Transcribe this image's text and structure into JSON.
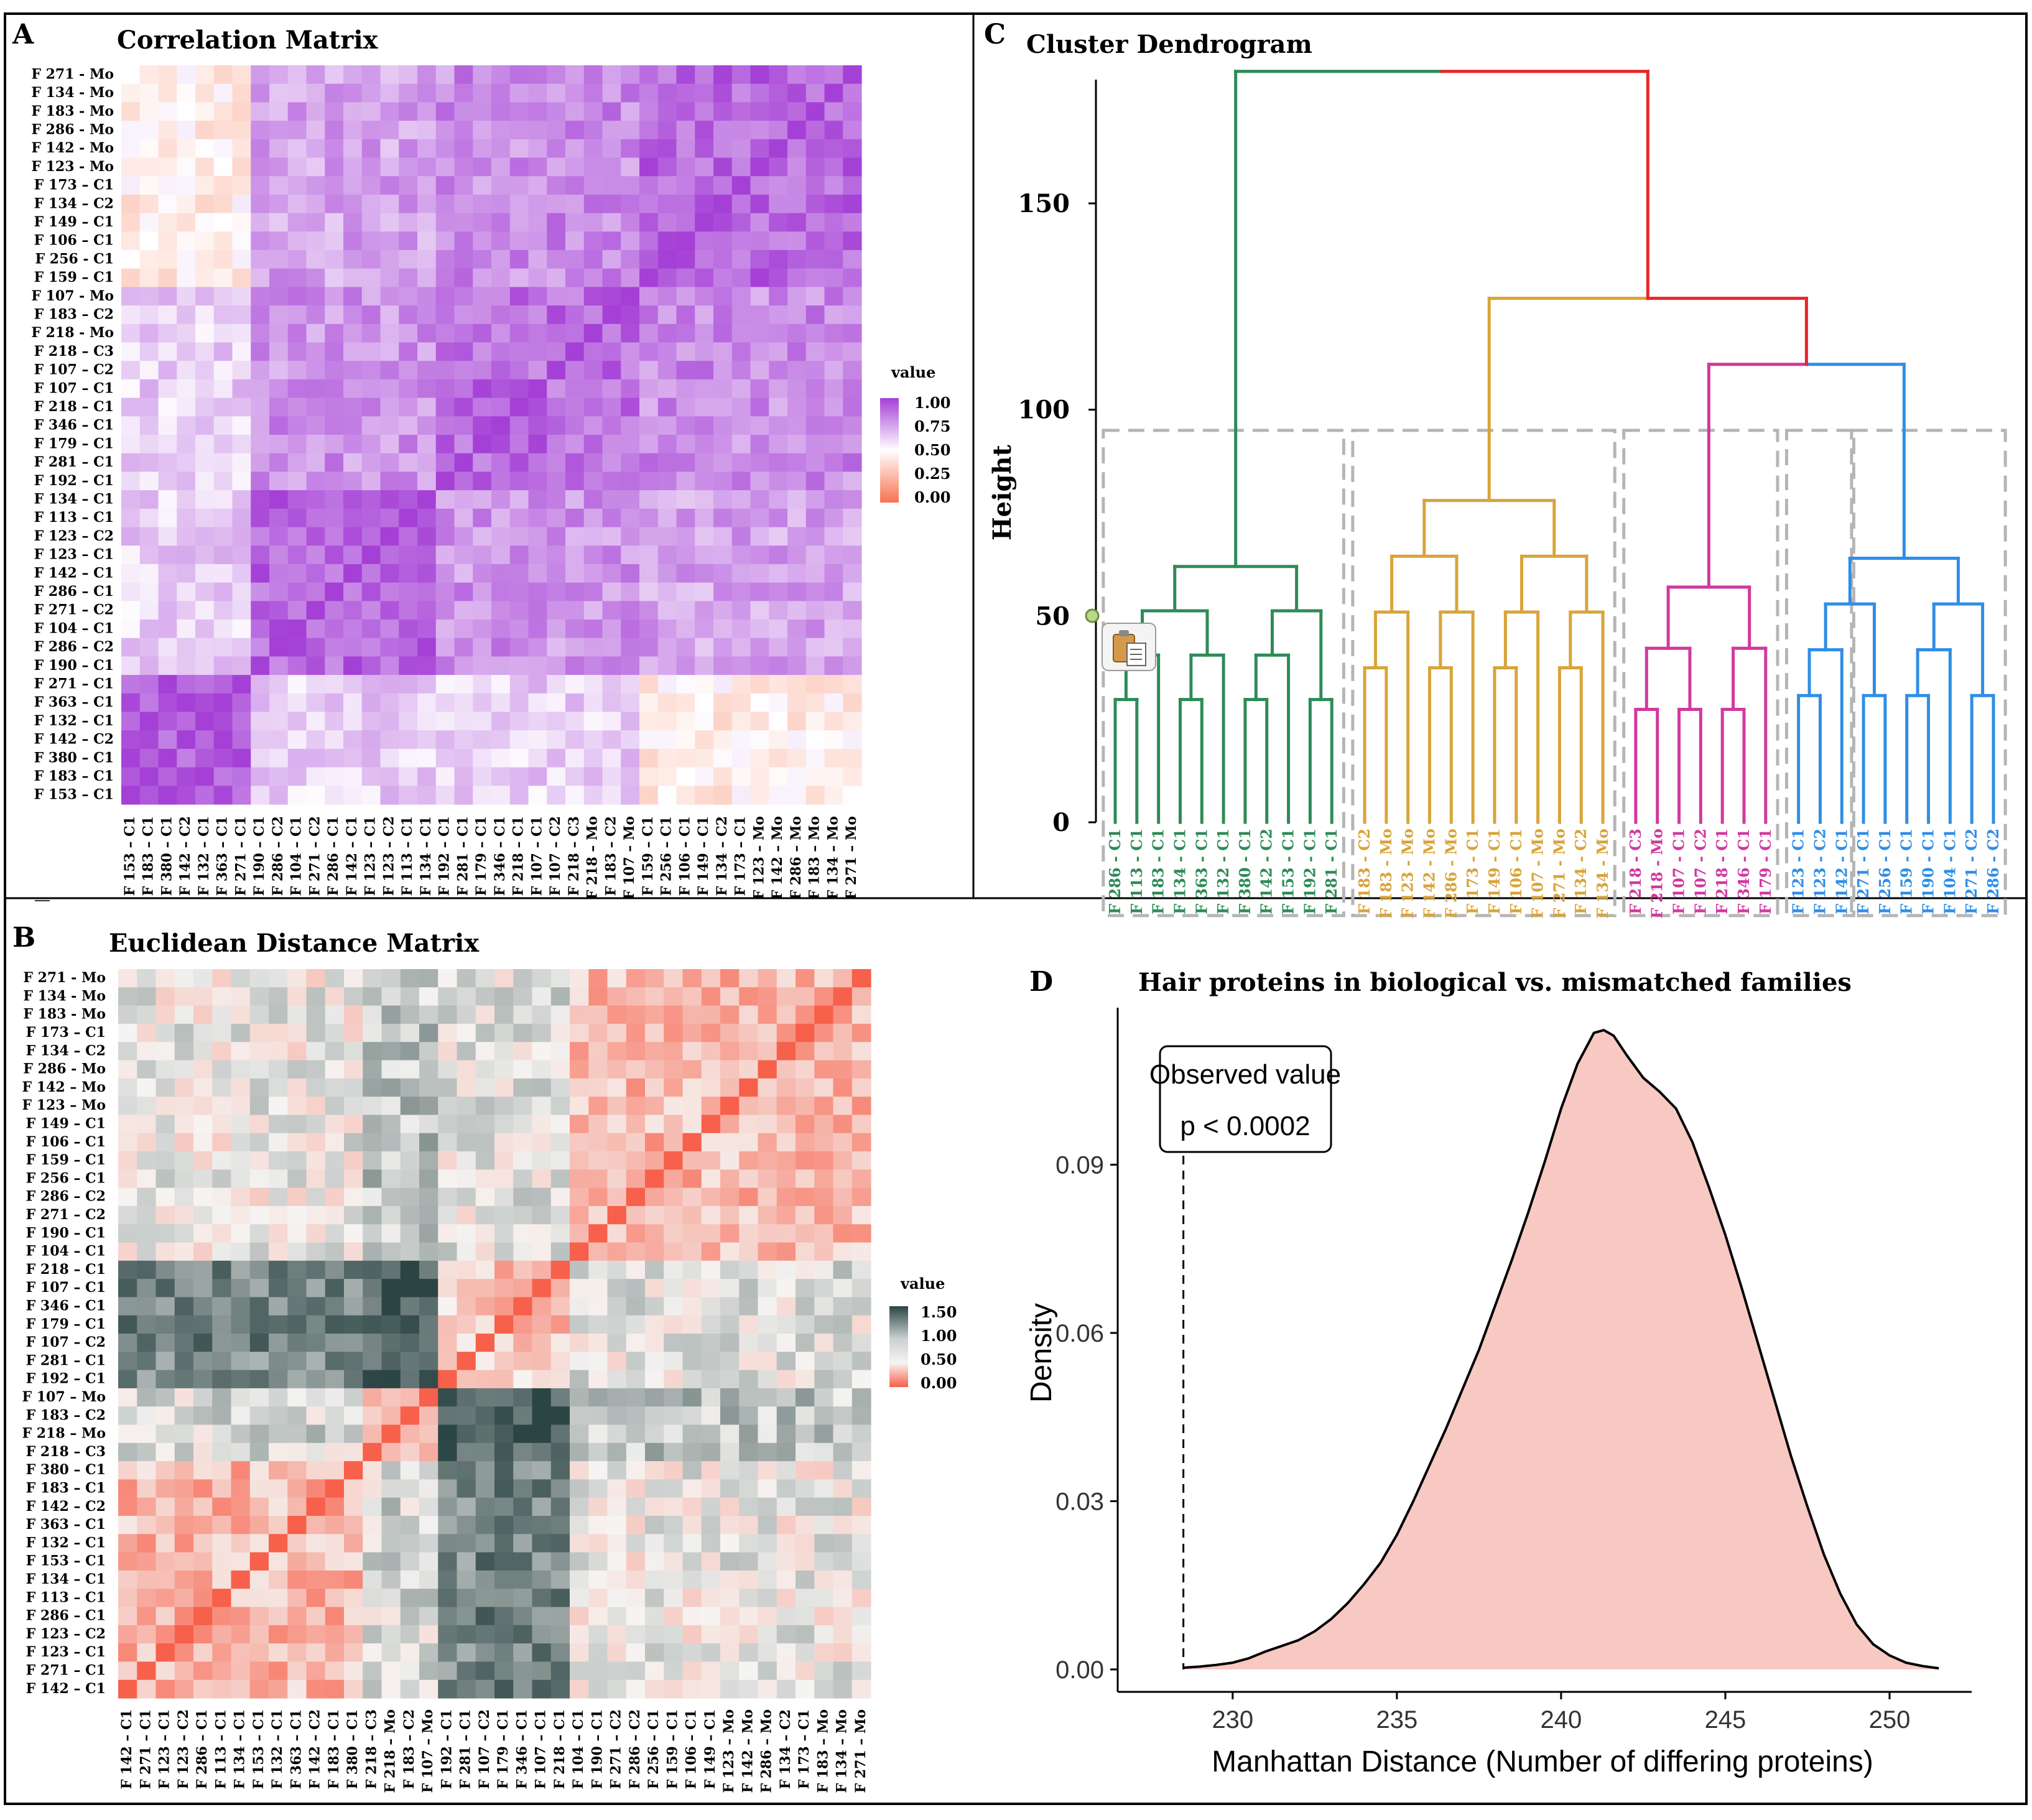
{
  "colors": {
    "corr_low": "#f7734f",
    "corr_mid": "#ffffff",
    "corr_high": "#a540d6",
    "dist_low": "#f7604a",
    "dist_mid": "#f6f4f2",
    "dist_high": "#2b4544",
    "dendro_green": "#2e8b57",
    "dendro_gold": "#d8a43a",
    "dendro_pink": "#d1399e",
    "dendro_blue": "#2f8ee6",
    "dendro_red": "#e8262b",
    "density_fill": "#f8c8c2"
  },
  "chart_data": [
    {
      "panel": "A",
      "type": "heatmap",
      "title": "Correlation Matrix",
      "row_labels": [
        "F 271 - Mo",
        "F 134 - Mo",
        "F 183 - Mo",
        "F 286 - Mo",
        "F 142 - Mo",
        "F 123 - Mo",
        "F 173 – C1",
        "F 134 – C2",
        "F 149 – C1",
        "F 106 – C1",
        "F 256 - C1",
        "F 159 – C1",
        "F 107 - Mo",
        "F 183 – C2",
        "F 218 - Mo",
        "F 218 – C3",
        "F 107 – C2",
        "F 107 – C1",
        "F 218 – C1",
        "F 346 – C1",
        "F 179 – C1",
        "F 281 – C1",
        "F 192 – C1",
        "F 134 – C1",
        "F 113 – C1",
        "F 123 – C2",
        "F 123 – C1",
        "F 142 – C1",
        "F 286 – C1",
        "F 271 – C2",
        "F 104 – C1",
        "F 286 – C2",
        "F 190 – C1",
        "F 271 – C1",
        "F 363 – C1",
        "F 132 – C1",
        "F 142 – C2",
        "F 380 – C1",
        "F 183 – C1",
        "F 153 – C1"
      ],
      "col_labels": [
        "F 153 – C1",
        "F 183 – C1",
        "F 380 – C1",
        "F 142 – C2",
        "F 132 – C1",
        "F 363 – C1",
        "F 271 – C1",
        "F 190 – C1",
        "F 286 – C2",
        "F 104 – C1",
        "F 271 – C2",
        "F 286 – C1",
        "F 142 – C1",
        "F 123 – C1",
        "F 123 – C2",
        "F 113 – C1",
        "F 134 – C1",
        "F 192 – C1",
        "F 281 – C1",
        "F 179 – C1",
        "F 346 – C1",
        "F 218 – C1",
        "F 107 – C1",
        "F 107 – C2",
        "F 218 – C3",
        "F 218 – Mo",
        "F 183 – C2",
        "F 107 – Mo",
        "F 159 – C1",
        "F 256 – C1",
        "F 106 – C1",
        "F 149 – C1",
        "F 134 – C2",
        "F 173 – C1",
        "F 123 – Mo",
        "F 142 – Mo",
        "F 286 – Mo",
        "F 183 – Mo",
        "F 134 – Mo",
        "F 271 – Mo"
      ],
      "diagonal_value": 1.0,
      "value_range": [
        0,
        1
      ],
      "legend": {
        "title": "value",
        "ticks": [
          "1.00",
          "0.75",
          "0.50",
          "0.25",
          "0.00"
        ],
        "position": "right"
      }
    },
    {
      "panel": "B",
      "type": "heatmap",
      "title": "Euclidean Distance Matrix",
      "row_labels": [
        "F 271 - Mo",
        "F 134 - Mo",
        "F 183 - Mo",
        "F 173 – C1",
        "F 134 – C2",
        "F 286 - Mo",
        "F 142 – Mo",
        "F 123 – Mo",
        "F 149 – C1",
        "F 106 – C1",
        "F 159 – C1",
        "F 256 – C1",
        "F 286 – C2",
        "F 271 – C2",
        "F 190 – C1",
        "F 104 – C1",
        "F 218 – C1",
        "F 107 – C1",
        "F 346 – C1",
        "F 179 – C1",
        "F 107 – C2",
        "F 281 – C1",
        "F 192 – C1",
        "F 107 – Mo",
        "F 183 – C2",
        "F 218 – Mo",
        "F 218 – C3",
        "F 380 – C1",
        "F 183 – C1",
        "F 142 – C2",
        "F 363 – C1",
        "F 132 – C1",
        "F 153 – C1",
        "F 134 – C1",
        "F 113 – C1",
        "F 286 – C1",
        "F 123 – C2",
        "F 123 – C1",
        "F 271 – C1",
        "F 142 – C1"
      ],
      "col_labels": [
        "F 142 – C1",
        "F 271 – C1",
        "F 123 – C1",
        "F 123 – C2",
        "F 286 – C1",
        "F 113 – C1",
        "F 134 – C1",
        "F 153 – C1",
        "F 132 – C1",
        "F 363 – C1",
        "F 142 – C2",
        "F 183 – C1",
        "F 380 – C1",
        "F 218 – C3",
        "F 218 – Mo",
        "F 183 – C2",
        "F 107 – Mo",
        "F 192 – C1",
        "F 281 – C1",
        "F 107 – C2",
        "F 179 – C1",
        "F 346 – C1",
        "F 107 – C1",
        "F 218 – C1",
        "F 104 – C1",
        "F 190 – C1",
        "F 271 – C2",
        "F 286 – C2",
        "F 256 – C1",
        "F 159 – C1",
        "F 106 – C1",
        "F 149 – C1",
        "F 123 – Mo",
        "F 142 – Mo",
        "F 286 – Mo",
        "F 134 – C2",
        "F 173 – C1",
        "F 183 – Mo",
        "F 134 – Mo",
        "F 271 – Mo"
      ],
      "diagonal_value": 0.0,
      "value_range": [
        0,
        1.5
      ],
      "legend": {
        "title": "value",
        "ticks": [
          "1.50",
          "1.00",
          "0.50",
          "0.00"
        ],
        "position": "right"
      }
    },
    {
      "panel": "C",
      "type": "dendrogram",
      "title": "Cluster Dendrogram",
      "ylabel": "Height",
      "ylim": [
        0,
        180
      ],
      "yticks": [
        0,
        50,
        100,
        150
      ],
      "clusters": [
        {
          "color_key": "dendro_green",
          "labels": [
            "F 286 - C1",
            "F 113 - C1",
            "F 183 - C1",
            "F 134 - C1",
            "F 363 - C1",
            "F 132 - C1",
            "F 380 - C1",
            "F 142 - C2",
            "F 153 - C1",
            "F 192 - C1",
            "F 281 - C1"
          ],
          "height": 62
        },
        {
          "color_key": "dendro_gold",
          "labels": [
            "F 183 - C2",
            "F 183 - Mo",
            "F 123 - Mo",
            "F 142 - Mo",
            "F 286 - Mo",
            "F 173 - C1",
            "F 149 - C1",
            "F 106 - C1",
            "F 107 - Mo",
            "F 271 - Mo",
            "F 134 - C2",
            "F 134 - Mo"
          ],
          "height": 78
        },
        {
          "color_key": "dendro_pink",
          "labels": [
            "F 218 - C3",
            "F 218 - Mo",
            "F 107 - C1",
            "F 107 - C2",
            "F 218 - C1",
            "F 346 - C1",
            "F 179 - C1"
          ],
          "height": 57
        },
        {
          "color_key": "dendro_blue",
          "labels": [
            "F 123 - C1",
            "F 123 - C2",
            "F 142 - C1",
            "F 271 - C1",
            "F 256 - C1",
            "F 159 - C1",
            "F 190 - C1",
            "F 104 - C1",
            "F 271 - C2",
            "F 286 - C2"
          ],
          "height": 64
        }
      ],
      "merges": [
        {
          "clusters": [
            "pink",
            "blue"
          ],
          "height": 111
        },
        {
          "clusters": [
            "gold",
            "pink+blue"
          ],
          "height": 127
        },
        {
          "clusters": [
            "green",
            "rest"
          ],
          "height": 182
        }
      ],
      "cut_boxes": 5
    },
    {
      "panel": "D",
      "type": "area",
      "title": "Hair proteins in biological vs. mismatched families",
      "xlabel": "Manhattan Distance (Number of differing proteins)",
      "ylabel": "Density",
      "xlim": [
        226.5,
        252.5
      ],
      "ylim": [
        -0.004,
        0.118
      ],
      "xticks": [
        230,
        235,
        240,
        245,
        250
      ],
      "yticks": [
        "0.00",
        "0.03",
        "0.06",
        "0.09"
      ],
      "observed_value": 228.5,
      "annotation": {
        "line1": "Observed value",
        "line2": "p < 0.0002"
      },
      "x": [
        228.5,
        229,
        229.5,
        230,
        230.5,
        231,
        231.5,
        232,
        232.5,
        233,
        233.5,
        234,
        234.5,
        235,
        235.5,
        236,
        236.5,
        237,
        237.5,
        238,
        238.5,
        239,
        239.5,
        240,
        240.5,
        241,
        241.3,
        241.6,
        242,
        242.5,
        243,
        243.5,
        244,
        244.5,
        245,
        245.5,
        246,
        246.5,
        247,
        247.5,
        248,
        248.5,
        249,
        249.5,
        250,
        250.5,
        251,
        251.5
      ],
      "y": [
        0.0003,
        0.0005,
        0.0008,
        0.0012,
        0.002,
        0.0032,
        0.0042,
        0.0052,
        0.0068,
        0.009,
        0.0118,
        0.0152,
        0.019,
        0.024,
        0.03,
        0.0365,
        0.043,
        0.05,
        0.057,
        0.065,
        0.073,
        0.0815,
        0.0905,
        0.1,
        0.108,
        0.1135,
        0.114,
        0.113,
        0.1095,
        0.1055,
        0.103,
        0.1,
        0.094,
        0.086,
        0.0775,
        0.068,
        0.058,
        0.048,
        0.038,
        0.029,
        0.0205,
        0.0135,
        0.008,
        0.0045,
        0.0025,
        0.0012,
        0.0006,
        0.0002
      ]
    }
  ],
  "panels": {
    "a": {
      "letter": "A",
      "title": "Correlation Matrix",
      "legend_title": "value",
      "legend_ticks": [
        "1.00",
        "0.75",
        "0.50",
        "0.25",
        "0.00"
      ]
    },
    "b": {
      "letter": "B",
      "title": "Euclidean Distance Matrix",
      "legend_title": "value",
      "legend_ticks": [
        "1.50",
        "1.00",
        "0.50",
        "0.00"
      ]
    },
    "c": {
      "letter": "C",
      "title": "Cluster Dendrogram",
      "ylabel": "Height",
      "yticks": [
        "0",
        "50",
        "100",
        "150"
      ]
    },
    "d": {
      "letter": "D",
      "title": "Hair proteins in biological vs. mismatched families",
      "xlabel": "Manhattan Distance (Number of differing proteins)",
      "ylabel": "Density",
      "xticks": [
        "230",
        "235",
        "240",
        "245",
        "250"
      ],
      "yticks": [
        "0.00",
        "0.03",
        "0.06",
        "0.09"
      ],
      "obs_line1": "Observed value",
      "obs_line2": "p < 0.0002"
    }
  }
}
